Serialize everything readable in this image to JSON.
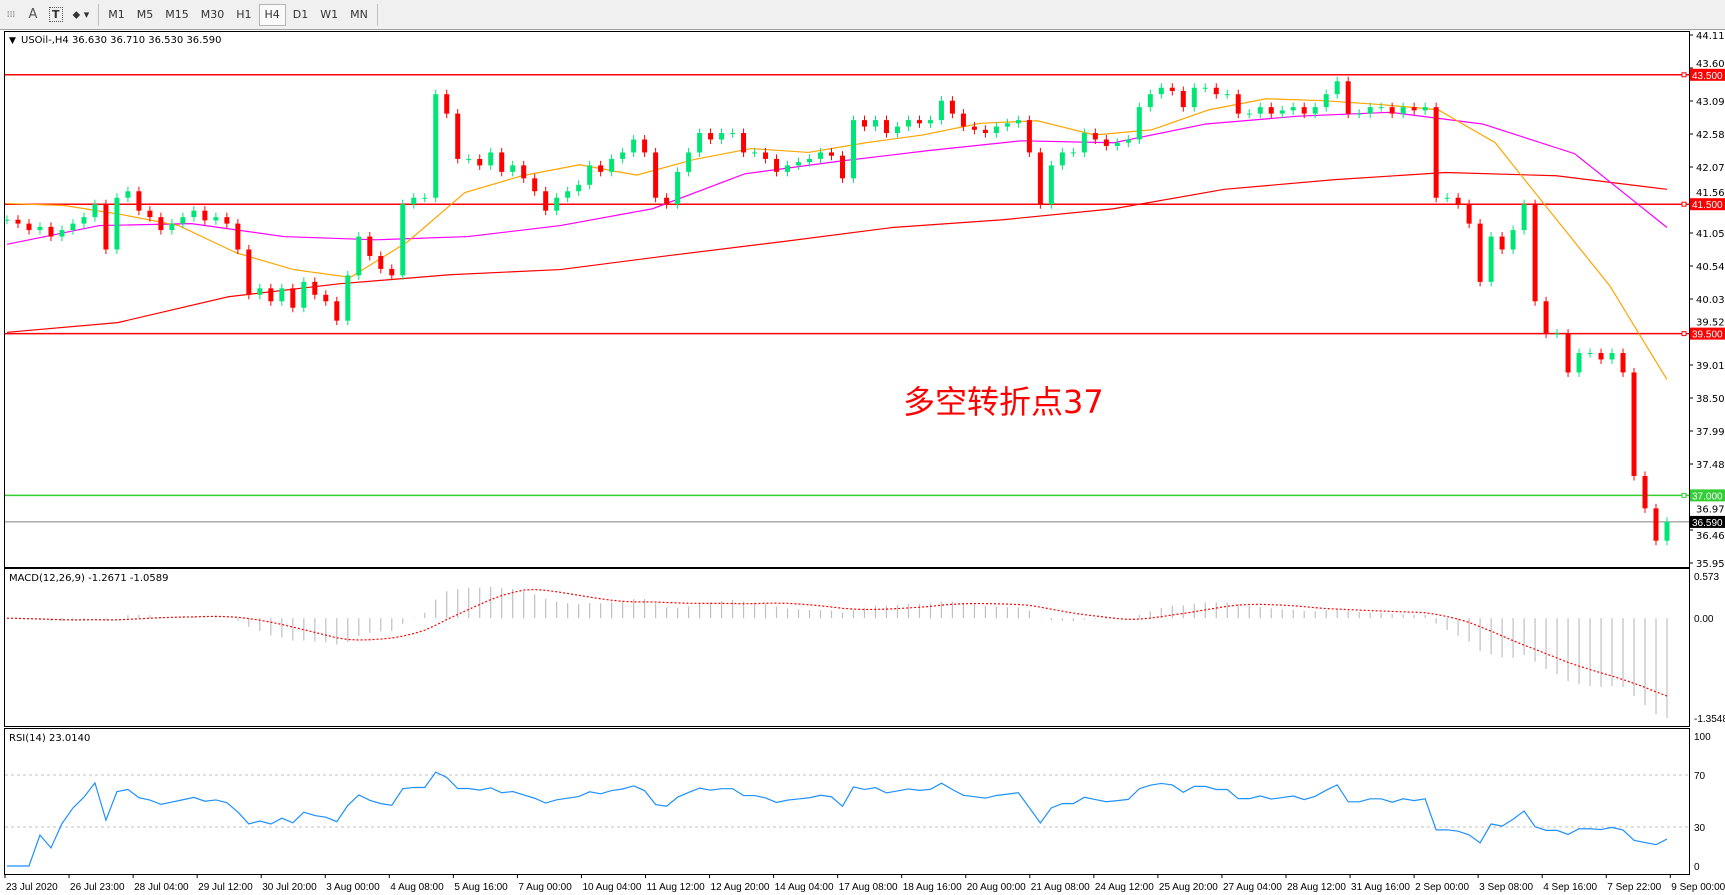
{
  "toolbar": {
    "tools": [
      {
        "name": "period-separator-icon",
        "glyph": "⁞⁞"
      },
      {
        "name": "text-tool-icon",
        "glyph": "A"
      },
      {
        "name": "text-label-tool-icon",
        "glyph": "T"
      },
      {
        "name": "arrows-tool-icon",
        "glyph": "⬥▾"
      }
    ],
    "timeframes": [
      "M1",
      "M5",
      "M15",
      "M30",
      "H1",
      "H4",
      "D1",
      "W1",
      "MN"
    ],
    "active_timeframe": "H4"
  },
  "chart": {
    "header": "USOil-,H4  36.630 36.710 36.530 36.590",
    "colors": {
      "bull": "#00e676",
      "bear": "#ff0000",
      "ma_fast": "#ffa500",
      "ma_mid": "#ff00ff",
      "ma_slow": "#ff0000",
      "hline": "#ff0000",
      "support": "#32cd32",
      "price_line": "#808080",
      "macd_hist": "#c0c0c0",
      "macd_signal": "#ff0000",
      "rsi": "#1e90ff"
    },
    "price_axis_labels": [
      "44.115",
      "43.605",
      "43.095",
      "42.585",
      "42.075",
      "41.565",
      "41.055",
      "40.545",
      "40.035",
      "39.525",
      "39.015",
      "38.505",
      "37.995",
      "37.485",
      "36.975",
      "36.465",
      "35.955"
    ],
    "price_range": [
      35.955,
      44.115
    ],
    "horizontal_lines": [
      {
        "price": 43.5,
        "label": "43.500",
        "color": "#ff0000"
      },
      {
        "price": 41.5,
        "label": "41.500",
        "color": "#ff0000"
      },
      {
        "price": 39.5,
        "label": "39.500",
        "color": "#ff0000"
      },
      {
        "price": 37.0,
        "label": "37.000",
        "color": "#32cd32"
      }
    ],
    "current_price": {
      "price": 36.59,
      "label": "36.590"
    },
    "annotation": "多空转折点37",
    "closes": [
      41.26,
      41.2,
      41.1,
      41.15,
      41.0,
      41.1,
      41.2,
      41.3,
      41.5,
      40.8,
      41.6,
      41.7,
      41.4,
      41.3,
      41.1,
      41.2,
      41.3,
      41.4,
      41.25,
      41.3,
      41.2,
      40.8,
      40.1,
      40.2,
      40.0,
      40.2,
      39.9,
      40.3,
      40.1,
      40.0,
      39.7,
      40.4,
      41.0,
      40.7,
      40.5,
      40.4,
      41.5,
      41.6,
      41.6,
      43.2,
      42.9,
      42.2,
      42.2,
      42.1,
      42.3,
      42.0,
      42.1,
      41.9,
      41.7,
      41.4,
      41.6,
      41.7,
      41.8,
      42.1,
      42.0,
      42.2,
      42.3,
      42.5,
      42.3,
      41.6,
      41.5,
      42.0,
      42.3,
      42.6,
      42.5,
      42.6,
      42.6,
      42.3,
      42.3,
      42.2,
      42.0,
      42.1,
      42.15,
      42.2,
      42.3,
      42.25,
      41.9,
      42.8,
      42.7,
      42.8,
      42.6,
      42.7,
      42.8,
      42.75,
      42.8,
      43.1,
      42.9,
      42.7,
      42.65,
      42.6,
      42.7,
      42.75,
      42.8,
      42.3,
      41.5,
      42.1,
      42.3,
      42.3,
      42.6,
      42.5,
      42.4,
      42.45,
      42.5,
      43.0,
      43.2,
      43.3,
      43.25,
      43.0,
      43.3,
      43.3,
      43.2,
      43.2,
      42.9,
      42.9,
      43.0,
      42.9,
      42.95,
      43.0,
      42.9,
      43.0,
      43.2,
      43.4,
      42.9,
      42.9,
      43.0,
      43.0,
      42.9,
      43.0,
      42.95,
      43.0,
      41.6,
      41.6,
      41.5,
      41.2,
      40.3,
      41.0,
      40.8,
      41.1,
      41.5,
      40.0,
      39.5,
      39.5,
      38.9,
      39.2,
      39.2,
      39.1,
      39.2,
      38.9,
      37.3,
      36.8,
      36.3,
      36.59
    ],
    "ma_slow": [
      39.52,
      39.67,
      40.07,
      40.27,
      40.41,
      40.49,
      40.71,
      40.92,
      41.14,
      41.26,
      41.43,
      41.73,
      41.88,
      41.99,
      41.94,
      41.73
    ],
    "ma_mid": [
      40.88,
      41.17,
      41.2,
      41.0,
      40.95,
      41.0,
      41.17,
      41.43,
      41.97,
      42.16,
      42.33,
      42.48,
      42.45,
      42.74,
      42.86,
      42.92,
      42.74,
      42.28,
      41.14
    ],
    "ma_fast": [
      41.51,
      41.48,
      41.34,
      41.17,
      40.75,
      40.49,
      40.37,
      40.92,
      41.68,
      41.94,
      42.11,
      41.95,
      42.19,
      42.36,
      42.3,
      42.45,
      42.57,
      42.75,
      42.79,
      42.57,
      42.65,
      42.96,
      43.13,
      43.1,
      43.04,
      42.96,
      42.45,
      41.34,
      40.24,
      38.79
    ]
  },
  "macd": {
    "label": "MACD(12,26,9) -1.2671 -1.0589",
    "axis_labels": [
      "0.573",
      "0.00",
      "-1.3548"
    ],
    "range": [
      -1.3548,
      0.573
    ]
  },
  "rsi": {
    "label": "RSI(14) 23.0140",
    "axis_labels": [
      "100",
      "70",
      "30",
      "0"
    ],
    "levels": [
      70,
      30
    ]
  },
  "time_axis": [
    "23 Jul 2020",
    "26 Jul 23:00",
    "28 Jul 04:00",
    "29 Jul 12:00",
    "30 Jul 20:00",
    "3 Aug 00:00",
    "4 Aug 08:00",
    "5 Aug 16:00",
    "7 Aug 00:00",
    "10 Aug 04:00",
    "11 Aug 12:00",
    "12 Aug 20:00",
    "14 Aug 04:00",
    "17 Aug 08:00",
    "18 Aug 16:00",
    "20 Aug 00:00",
    "21 Aug 08:00",
    "24 Aug 12:00",
    "25 Aug 20:00",
    "27 Aug 04:00",
    "28 Aug 12:00",
    "31 Aug 16:00",
    "2 Sep 00:00",
    "3 Sep 08:00",
    "4 Sep 16:00",
    "7 Sep 22:00",
    "9 Sep 00:00"
  ]
}
